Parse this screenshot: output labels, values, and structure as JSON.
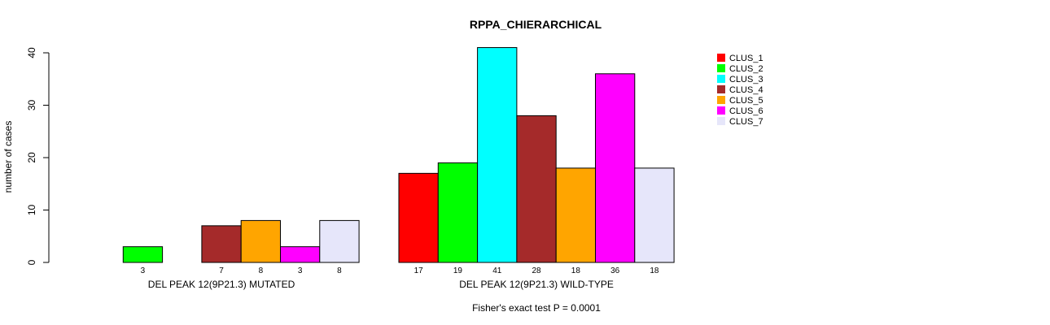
{
  "chart_data": {
    "type": "bar",
    "title": "RPPA_CHIERARCHICAL",
    "xlabel": "",
    "ylabel": "number of cases",
    "ylim": [
      0,
      40
    ],
    "yticks": [
      0,
      10,
      20,
      30,
      40
    ],
    "grid": false,
    "legend_position": "top-right",
    "groups": [
      "DEL PEAK 12(9P21.3) MUTATED",
      "DEL PEAK 12(9P21.3) WILD-TYPE"
    ],
    "series": [
      {
        "name": "CLUS_1",
        "color": "#FF0000",
        "values": [
          0,
          17
        ]
      },
      {
        "name": "CLUS_2",
        "color": "#00FF00",
        "values": [
          3,
          19
        ]
      },
      {
        "name": "CLUS_3",
        "color": "#00FFFF",
        "values": [
          0,
          41
        ]
      },
      {
        "name": "CLUS_4",
        "color": "#A52A2A",
        "values": [
          7,
          28
        ]
      },
      {
        "name": "CLUS_5",
        "color": "#FFA500",
        "values": [
          8,
          18
        ]
      },
      {
        "name": "CLUS_6",
        "color": "#FF00FF",
        "values": [
          3,
          36
        ]
      },
      {
        "name": "CLUS_7",
        "color": "#E6E6FA",
        "values": [
          8,
          18
        ]
      }
    ],
    "count_labels": [
      [
        "",
        "3",
        "",
        "7",
        "8",
        "3",
        "8"
      ],
      [
        "17",
        "19",
        "41",
        "28",
        "18",
        "36",
        "18"
      ]
    ],
    "annotation": "Fisher's exact test P = 0.0001"
  }
}
